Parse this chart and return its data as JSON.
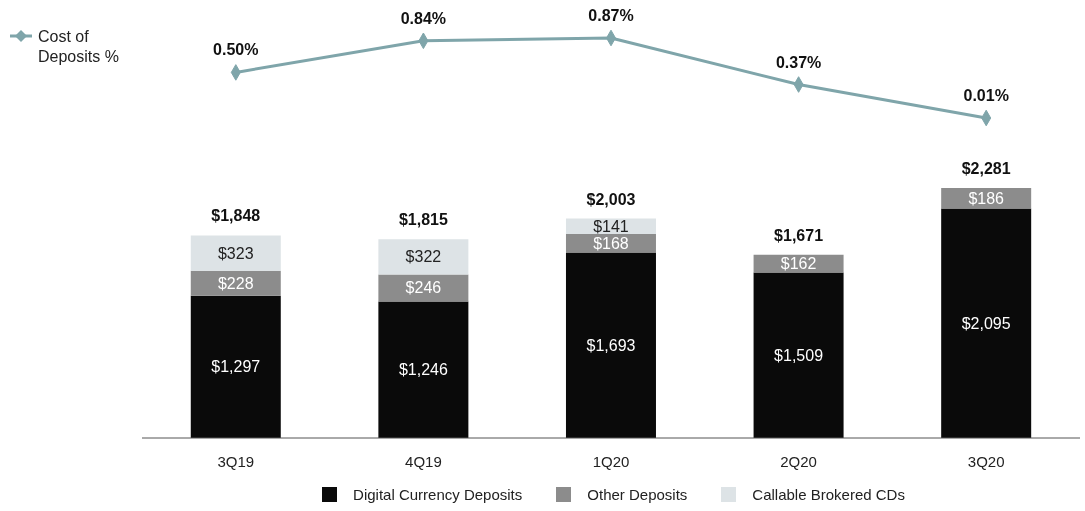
{
  "chart_data": [
    {
      "type": "line",
      "categories": [
        null,
        null,
        null,
        null,
        null
      ],
      "tick_labels": false,
      "legend": "left",
      "marker": "diamond",
      "series": [
        {
          "name": "Cost of Deposits %",
          "color": "#7fa5aa",
          "values": [
            0.5,
            0.84,
            0.87,
            0.37,
            0.01
          ],
          "value_labels": [
            "0.50%",
            "0.84%",
            "0.87%",
            "0.37%",
            "0.01%"
          ]
        }
      ]
    },
    {
      "type": "bar",
      "stacked": true,
      "categories": [
        "3Q19",
        "4Q19",
        "1Q20",
        "2Q20",
        "3Q20"
      ],
      "tick_labels": "x",
      "legend": "bottom",
      "series": [
        {
          "name": "Digital Currency Deposits",
          "color": "#0a0a0a",
          "values": [
            1297,
            1246,
            1693,
            1509,
            2095
          ],
          "value_labels": [
            "$1,297",
            "$1,246",
            "$1,693",
            "$1,509",
            "$2,095"
          ]
        },
        {
          "name": "Other Deposits",
          "color": "#8c8c8c",
          "values": [
            228,
            246,
            168,
            162,
            186
          ],
          "value_labels": [
            "$228",
            "$246",
            "$168",
            "$162",
            "$186"
          ]
        },
        {
          "name": "Callable Brokered CDs",
          "color": "#dde3e6",
          "values": [
            323,
            322,
            141,
            null,
            null
          ],
          "value_labels": [
            "$323",
            "$322",
            "$141",
            null,
            null
          ]
        }
      ],
      "totals": [
        "$1,848",
        "$1,815",
        "$2,003",
        "$1,671",
        "$2,281"
      ]
    }
  ]
}
